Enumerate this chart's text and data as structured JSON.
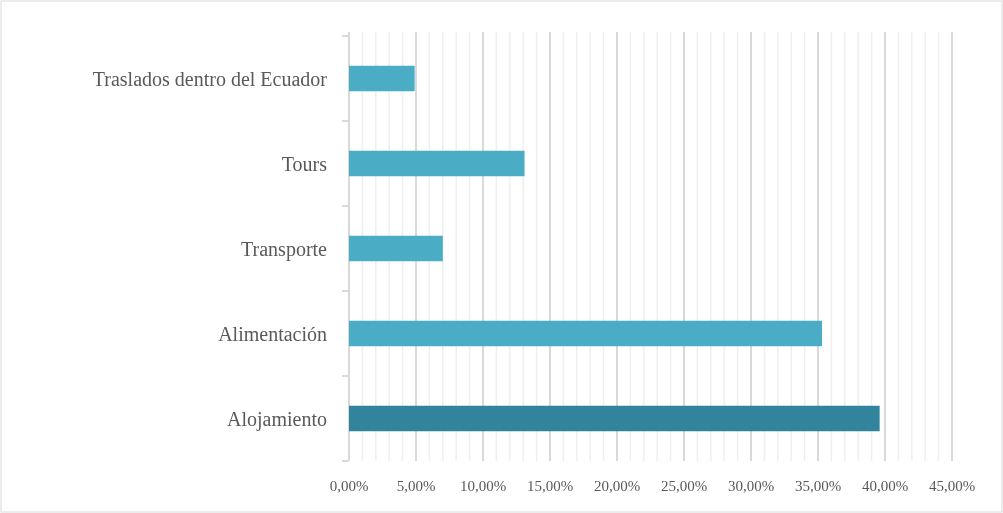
{
  "chart_data": {
    "type": "bar",
    "orientation": "horizontal",
    "categories": [
      "Traslados dentro del Ecuador",
      "Tours",
      "Transporte",
      "Alimentación",
      "Alojamiento"
    ],
    "values": [
      4.9,
      13.1,
      7.0,
      35.3,
      39.6
    ],
    "colors": [
      "#4bacc6",
      "#4bacc6",
      "#4bacc6",
      "#4bacc6",
      "#31849b"
    ],
    "xlim": [
      0,
      45
    ],
    "xticks": [
      {
        "value": 0,
        "label": "0,00%"
      },
      {
        "value": 1,
        "label": null
      },
      {
        "value": 2,
        "label": null
      },
      {
        "value": 3,
        "label": null
      },
      {
        "value": 4,
        "label": null
      },
      {
        "value": 5,
        "label": "5,00%"
      },
      {
        "value": 6,
        "label": null
      },
      {
        "value": 7,
        "label": null
      },
      {
        "value": 8,
        "label": null
      },
      {
        "value": 9,
        "label": null
      },
      {
        "value": 10,
        "label": "10,00%"
      },
      {
        "value": 11,
        "label": null
      },
      {
        "value": 12,
        "label": null
      },
      {
        "value": 13,
        "label": null
      },
      {
        "value": 14,
        "label": null
      },
      {
        "value": 15,
        "label": "15,00%"
      },
      {
        "value": 16,
        "label": null
      },
      {
        "value": 17,
        "label": null
      },
      {
        "value": 18,
        "label": null
      },
      {
        "value": 19,
        "label": null
      },
      {
        "value": 20,
        "label": "20,00%"
      },
      {
        "value": 21,
        "label": null
      },
      {
        "value": 22,
        "label": null
      },
      {
        "value": 23,
        "label": null
      },
      {
        "value": 24,
        "label": null
      },
      {
        "value": 25,
        "label": "25,00%"
      },
      {
        "value": 26,
        "label": null
      },
      {
        "value": 27,
        "label": null
      },
      {
        "value": 28,
        "label": null
      },
      {
        "value": 29,
        "label": null
      },
      {
        "value": 30,
        "label": "30,00%"
      },
      {
        "value": 31,
        "label": null
      },
      {
        "value": 32,
        "label": null
      },
      {
        "value": 33,
        "label": null
      },
      {
        "value": 34,
        "label": null
      },
      {
        "value": 35,
        "label": "35,00%"
      },
      {
        "value": 36,
        "label": null
      },
      {
        "value": 37,
        "label": null
      },
      {
        "value": 38,
        "label": null
      },
      {
        "value": 39,
        "label": null
      },
      {
        "value": 40,
        "label": "40,00%"
      },
      {
        "value": 41,
        "label": null
      },
      {
        "value": 42,
        "label": null
      },
      {
        "value": 43,
        "label": null
      },
      {
        "value": 44,
        "label": null
      },
      {
        "value": 45,
        "label": "45,00%"
      }
    ],
    "grid": "x"
  }
}
